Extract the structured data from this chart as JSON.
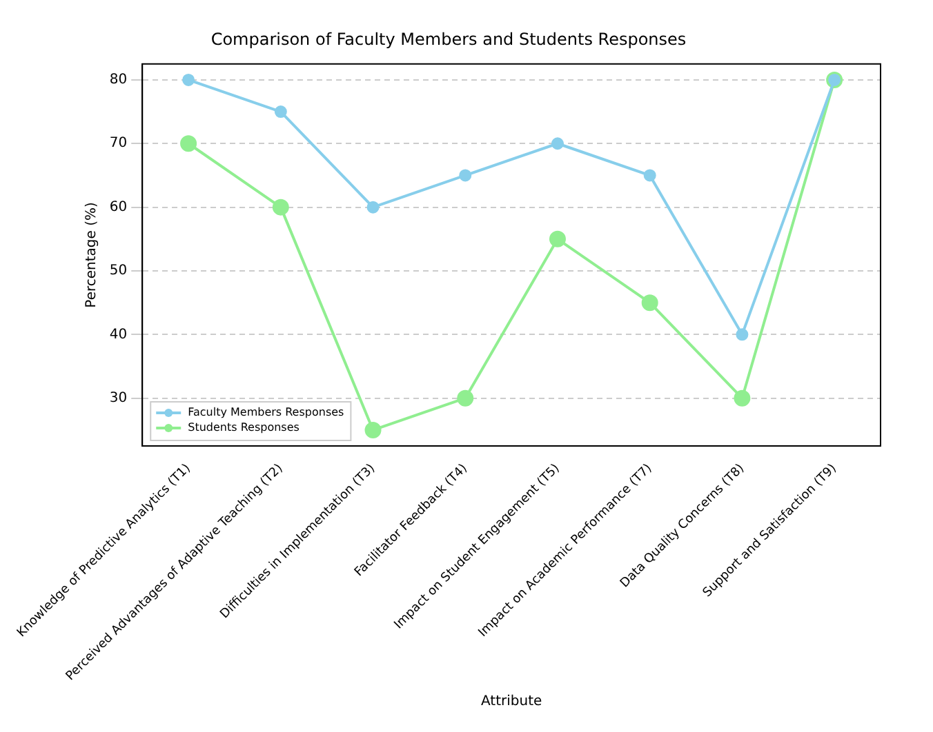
{
  "chart_data": {
    "type": "line",
    "title": "Comparison of Faculty Members and Students Responses",
    "xlabel": "Attribute",
    "ylabel": "Percentage (%)",
    "categories": [
      "Knowledge of Predictive Analytics (T1)",
      "Perceived Advantages of Adaptive Teaching (T2)",
      "Difficulties in Implementation (T3)",
      "Facilitator Feedback (T4)",
      "Impact on Student Engagement (T5)",
      "Impact on Academic Performance (T7)",
      "Data Quality Concerns (T8)",
      "Support and Satisfaction (T9)"
    ],
    "series": [
      {
        "name": "Faculty Members Responses",
        "color": "#87ceeb",
        "values": [
          80,
          75,
          60,
          65,
          70,
          65,
          40,
          80
        ]
      },
      {
        "name": "Students Responses",
        "color": "#90ee90",
        "values": [
          70,
          60,
          25,
          30,
          55,
          45,
          30,
          80
        ]
      }
    ],
    "ylim": [
      22.5,
      82.5
    ],
    "yticks": [
      30,
      40,
      50,
      60,
      70,
      80
    ],
    "grid": "y",
    "legend": "bottom left",
    "marker": "circle",
    "line_style": "solid"
  }
}
